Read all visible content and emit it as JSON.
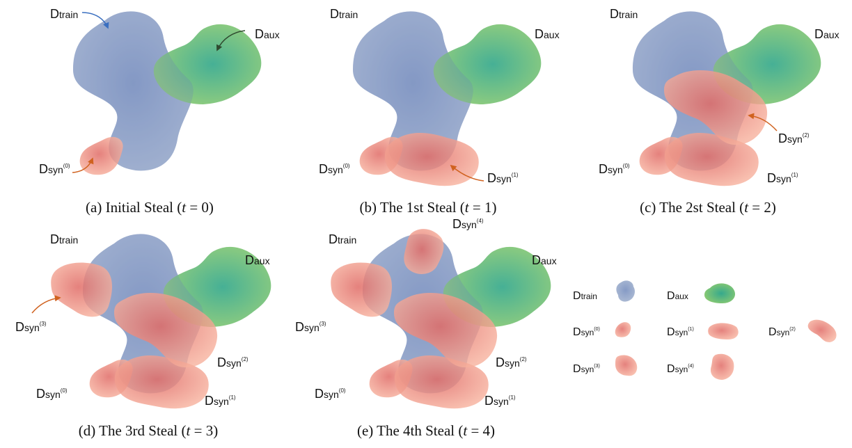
{
  "labels": {
    "d": "D",
    "train": "train",
    "aux": "aux",
    "syn": "syn",
    "sup0": "(0)",
    "sup1": "(1)",
    "sup2": "(2)",
    "sup3": "(3)",
    "sup4": "(4)"
  },
  "captions": {
    "a": {
      "prefix": "(a) Initial Steal (",
      "var": "t",
      "eq": " = 0)"
    },
    "b": {
      "prefix": "(b) The 1st Steal (",
      "var": "t",
      "eq": " = 1)"
    },
    "c": {
      "prefix": "(c) The 2st Steal (",
      "var": "t",
      "eq": " = 2)"
    },
    "d": {
      "prefix": "(d) The 3rd Steal (",
      "var": "t",
      "eq": " = 3)"
    },
    "e": {
      "prefix": "(e) The 4th Steal (",
      "var": "t",
      "eq": " = 4)"
    }
  },
  "colors": {
    "train": "#8fa3c8",
    "aux_outer": "#7cc576",
    "aux_inner": "#3aaa8a",
    "syn_outer": "#f6ab98",
    "syn_inner": "#e2706a",
    "arrow_train": "#3a6fc0",
    "arrow_aux": "#2f4a2f",
    "arrow_syn": "#d0621f"
  }
}
